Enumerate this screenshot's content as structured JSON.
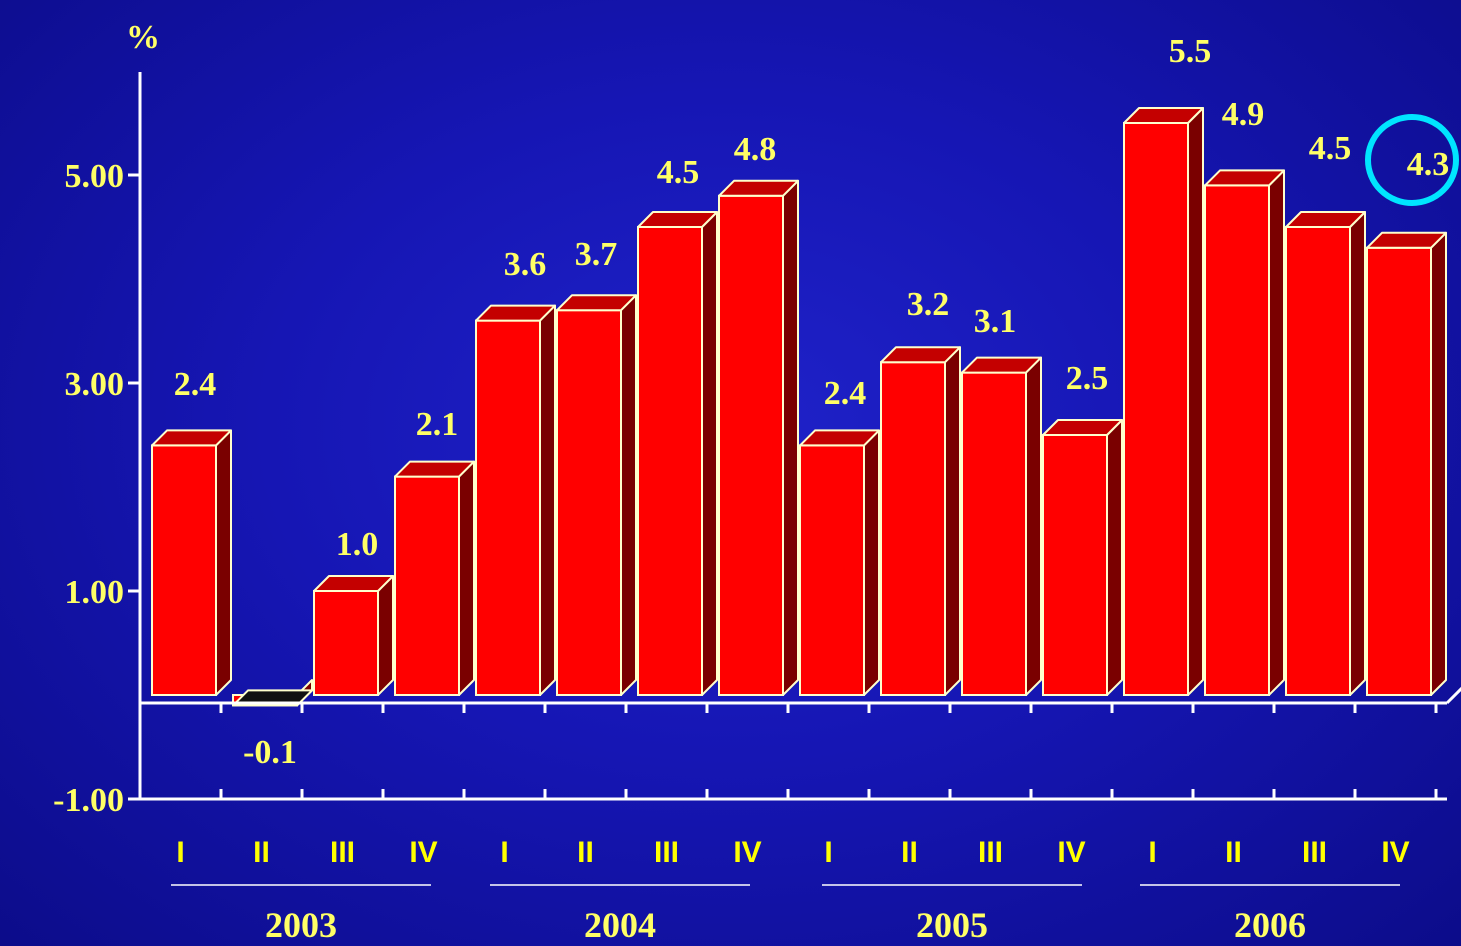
{
  "chart_data": {
    "type": "bar",
    "ylabel": "%",
    "ylim": [
      -1,
      6
    ],
    "yticks": [
      "5.00",
      "3.00",
      "1.00",
      "-1.00"
    ],
    "ytick_values": [
      5,
      3,
      1,
      -1
    ],
    "categories": [
      "I",
      "II",
      "III",
      "IV",
      "I",
      "II",
      "III",
      "IV",
      "I",
      "II",
      "III",
      "IV",
      "I",
      "II",
      "III",
      "IV"
    ],
    "values": [
      2.4,
      -0.1,
      1.0,
      2.1,
      3.6,
      3.7,
      4.5,
      4.8,
      2.4,
      3.2,
      3.1,
      2.5,
      5.5,
      4.9,
      4.5,
      4.3
    ],
    "data_labels": [
      "2.4",
      "-0.1",
      "1.0",
      "2.1",
      "3.6",
      "3.7",
      "4.5",
      "4.8",
      "2.4",
      "3.2",
      "3.1",
      "2.5",
      "5.5",
      "4.9",
      "4.5",
      "4.3"
    ],
    "years": [
      "2003",
      "2004",
      "2005",
      "2006"
    ],
    "highlighted_label": "4.3",
    "colors": {
      "bar_front": "#ff0000",
      "bar_top": "#c40000",
      "bar_side": "#7a0000",
      "negative_top": "#111111",
      "bar_edge": "#ffffcc",
      "text": "#ffff66",
      "quarter_text": "#ffff00",
      "axis": "#ffffff",
      "highlight_circle": "#00e5ff"
    }
  }
}
